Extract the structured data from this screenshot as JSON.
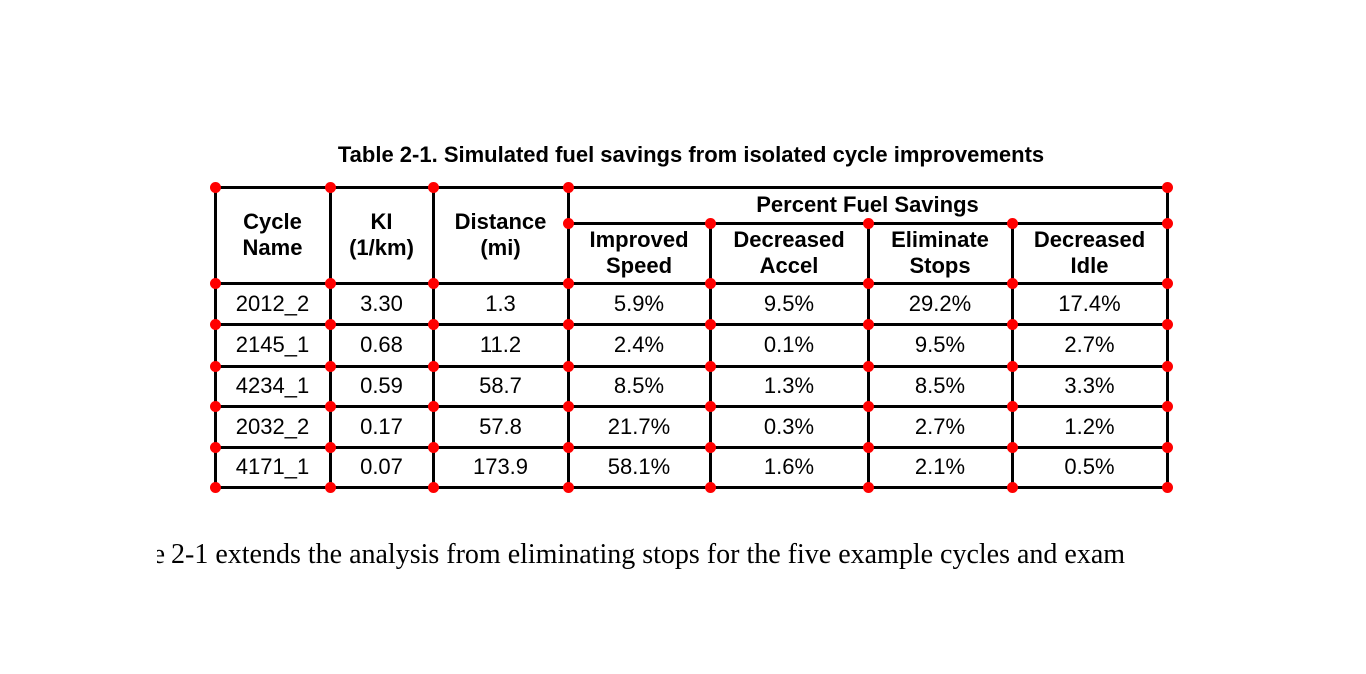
{
  "caption": "Table 2-1. Simulated fuel savings from isolated cycle improvements",
  "table": {
    "group_header": "Percent Fuel Savings",
    "headers": [
      {
        "line1": "Cycle",
        "line2": "Name"
      },
      {
        "line1": "KI",
        "line2": "(1/km)"
      },
      {
        "line1": "Distance",
        "line2": "(mi)"
      },
      {
        "line1": "Improved",
        "line2": "Speed"
      },
      {
        "line1": "Decreased",
        "line2": "Accel"
      },
      {
        "line1": "Eliminate",
        "line2": "Stops"
      },
      {
        "line1": "Decreased",
        "line2": "Idle"
      }
    ],
    "rows": [
      [
        "2012_2",
        "3.30",
        "1.3",
        "5.9%",
        "9.5%",
        "29.2%",
        "17.4%"
      ],
      [
        "2145_1",
        "0.68",
        "11.2",
        "2.4%",
        "0.1%",
        "9.5%",
        "2.7%"
      ],
      [
        "4234_1",
        "0.59",
        "58.7",
        "8.5%",
        "1.3%",
        "8.5%",
        "3.3%"
      ],
      [
        "2032_2",
        "0.17",
        "57.8",
        "21.7%",
        "0.3%",
        "2.7%",
        "1.2%"
      ],
      [
        "4171_1",
        "0.07",
        "173.9",
        "58.1%",
        "1.6%",
        "2.1%",
        "0.5%"
      ]
    ]
  },
  "paragraph": {
    "fragment": "e",
    "text": "2-1 extends the analysis from eliminating stops for the five example cycles and exam"
  },
  "annotation": {
    "grid_cols": [
      215,
      330,
      433,
      568,
      710,
      868,
      1012,
      1167
    ],
    "grid_rows": [
      187,
      223,
      283,
      324,
      366,
      406,
      447,
      487
    ],
    "dot_color": "#ff0000",
    "line_color": "#000000"
  }
}
